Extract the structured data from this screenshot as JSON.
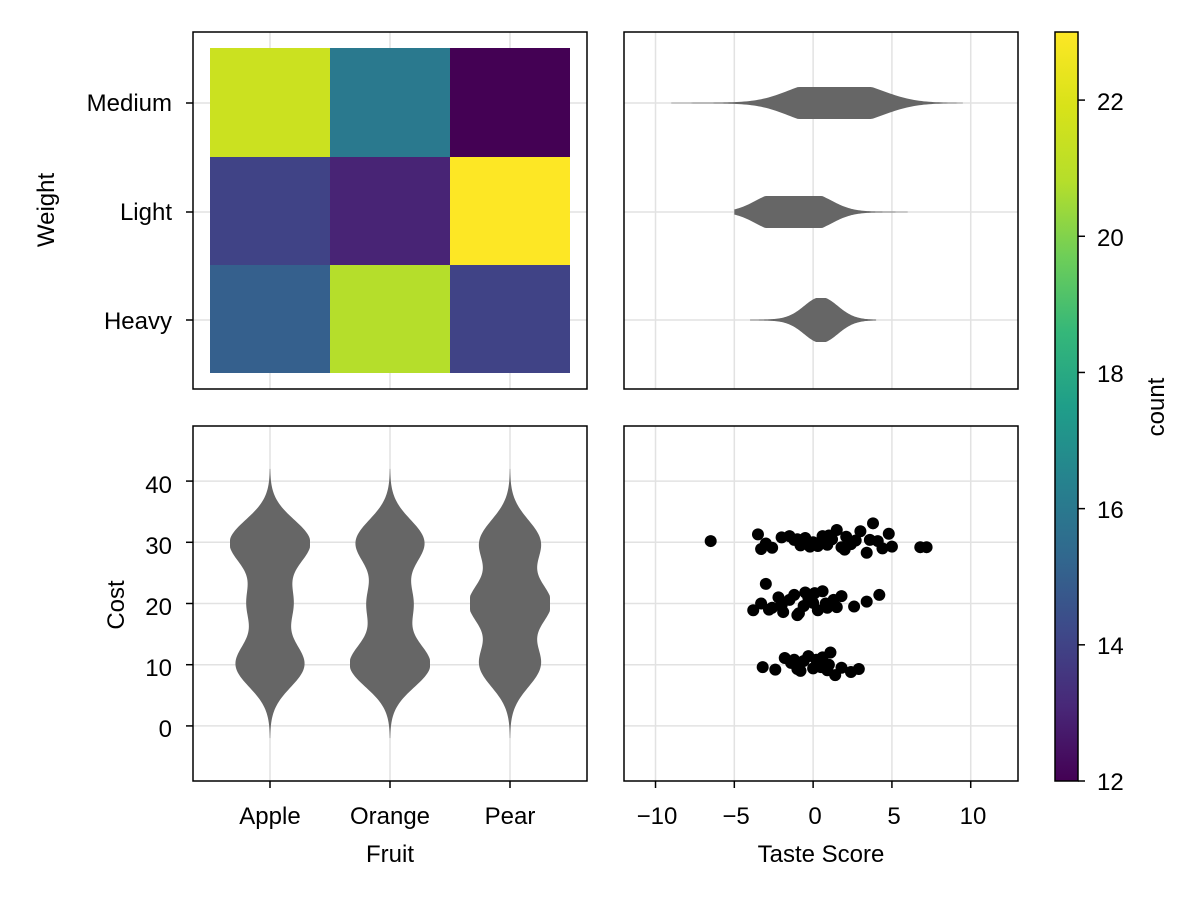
{
  "chart_data": [
    {
      "panel": "heatmap",
      "type": "heatmap",
      "x_categories": [
        "Apple",
        "Orange",
        "Pear"
      ],
      "y_categories": [
        "Heavy",
        "Light",
        "Medium"
      ],
      "ylabel": "Weight",
      "values": {
        "Medium": [
          21.5,
          16.0,
          12.0
        ],
        "Light": [
          14.0,
          13.0,
          23.0
        ],
        "Heavy": [
          15.0,
          20.8,
          14.0
        ]
      }
    },
    {
      "panel": "violin-taste-by-weight",
      "type": "violin",
      "orientation": "horizontal",
      "x_ticks": [
        -10,
        -5,
        0,
        5,
        10
      ],
      "xlim": [
        -12,
        13
      ],
      "groups": [
        {
          "name": "Medium",
          "min": -9.0,
          "max": 9.5,
          "modes": [
            0.0,
            3.0
          ]
        },
        {
          "name": "Light",
          "min": -5.0,
          "max": 6.0,
          "modes": [
            -2.5,
            0.0
          ]
        },
        {
          "name": "Heavy",
          "min": -4.0,
          "max": 4.0,
          "modes": [
            0.5
          ]
        }
      ]
    },
    {
      "panel": "violin-cost-by-fruit",
      "type": "violin",
      "orientation": "vertical",
      "categories": [
        "Apple",
        "Orange",
        "Pear"
      ],
      "xlabel": "Fruit",
      "ylabel": "Cost",
      "y_ticks": [
        0,
        10,
        20,
        30,
        40
      ],
      "ylim": [
        -9,
        49
      ],
      "groups": [
        {
          "name": "Apple",
          "min": -2,
          "max": 42,
          "modes": [
            10,
            20,
            30
          ]
        },
        {
          "name": "Orange",
          "min": -2,
          "max": 42,
          "modes": [
            10,
            20,
            30
          ]
        },
        {
          "name": "Pear",
          "min": -2,
          "max": 42,
          "modes": [
            10,
            20,
            30
          ]
        }
      ]
    },
    {
      "panel": "scatter",
      "type": "scatter",
      "xlabel": "Taste Score",
      "x_ticks": [
        -10,
        -5,
        0,
        5,
        10
      ],
      "xlim": [
        -12,
        13
      ],
      "clusters": [
        {
          "cost": 30,
          "x": [
            -6.5,
            -3.5,
            -3.0,
            -2.6,
            -2.0,
            -1.5,
            -1.2,
            -0.8,
            -0.5,
            -0.2,
            0.0,
            0.3,
            0.6,
            0.9,
            1.2,
            1.5,
            1.8,
            2.1,
            2.4,
            2.7,
            3.0,
            3.4,
            3.8,
            4.1,
            4.4,
            4.8,
            5.0,
            6.8,
            7.2,
            -3.3,
            -1.0,
            0.2,
            1.0,
            2.0,
            3.6
          ],
          "y": [
            30.2,
            31.3,
            29.8,
            29.1,
            30.8,
            31.0,
            30.4,
            29.5,
            30.7,
            29.3,
            30.0,
            29.4,
            31.0,
            29.6,
            30.5,
            32.0,
            29.2,
            30.9,
            29.7,
            30.3,
            31.8,
            28.3,
            33.1,
            30.2,
            29.0,
            31.4,
            29.3,
            29.2,
            29.2,
            28.9,
            30.5,
            29.8,
            31.1,
            28.8,
            30.4
          ]
        },
        {
          "cost": 20,
          "x": [
            -3.8,
            -3.3,
            -3.0,
            -2.6,
            -2.2,
            -1.9,
            -1.5,
            -1.2,
            -0.9,
            -0.6,
            -0.3,
            0.0,
            0.3,
            0.6,
            0.9,
            1.3,
            1.8,
            2.6,
            3.4,
            4.2,
            -2.8,
            -1.0,
            0.1,
            0.8,
            -0.5,
            1.5,
            -2.0
          ],
          "y": [
            18.9,
            20.0,
            23.2,
            19.3,
            21.0,
            18.6,
            20.6,
            21.4,
            18.4,
            19.6,
            20.9,
            20.1,
            18.9,
            22.0,
            19.3,
            20.6,
            21.2,
            19.5,
            20.3,
            21.4,
            19.0,
            18.1,
            21.7,
            20.0,
            21.8,
            19.4,
            19.7
          ]
        },
        {
          "cost": 10,
          "x": [
            -3.2,
            -2.4,
            -1.8,
            -1.4,
            -1.0,
            -0.6,
            -0.3,
            0.0,
            0.3,
            0.6,
            0.9,
            1.1,
            1.4,
            1.8,
            2.4,
            2.9,
            -0.8,
            0.2,
            1.0,
            -1.2,
            0.5
          ],
          "y": [
            9.6,
            9.2,
            11.1,
            10.3,
            9.3,
            10.6,
            11.4,
            9.4,
            10.4,
            11.2,
            9.1,
            12.0,
            8.3,
            9.5,
            8.8,
            9.3,
            9.0,
            10.8,
            10.0,
            10.8,
            9.6
          ]
        }
      ]
    },
    {
      "panel": "colorbar",
      "type": "colorbar",
      "label": "count",
      "range": [
        12,
        23
      ],
      "ticks": [
        12,
        14,
        16,
        18,
        20,
        22
      ],
      "colormap": "viridis"
    }
  ],
  "labels": {
    "fruit": [
      "Apple",
      "Orange",
      "Pear"
    ],
    "weight": [
      "Medium",
      "Light",
      "Heavy"
    ],
    "weight_axis": "Weight",
    "cost_axis": "Cost",
    "fruit_axis": "Fruit",
    "taste_axis": "Taste Score",
    "colorbar_label": "count"
  },
  "tick_text": {
    "taste": [
      "−10",
      "−5",
      "0",
      "5",
      "10"
    ],
    "cost": [
      "0",
      "10",
      "20",
      "30",
      "40"
    ],
    "count": [
      "12",
      "14",
      "16",
      "18",
      "20",
      "22"
    ]
  },
  "colors": {
    "violin_fill": "#666666",
    "scatter_dot": "#000000",
    "grid": "#e2e2e2"
  }
}
